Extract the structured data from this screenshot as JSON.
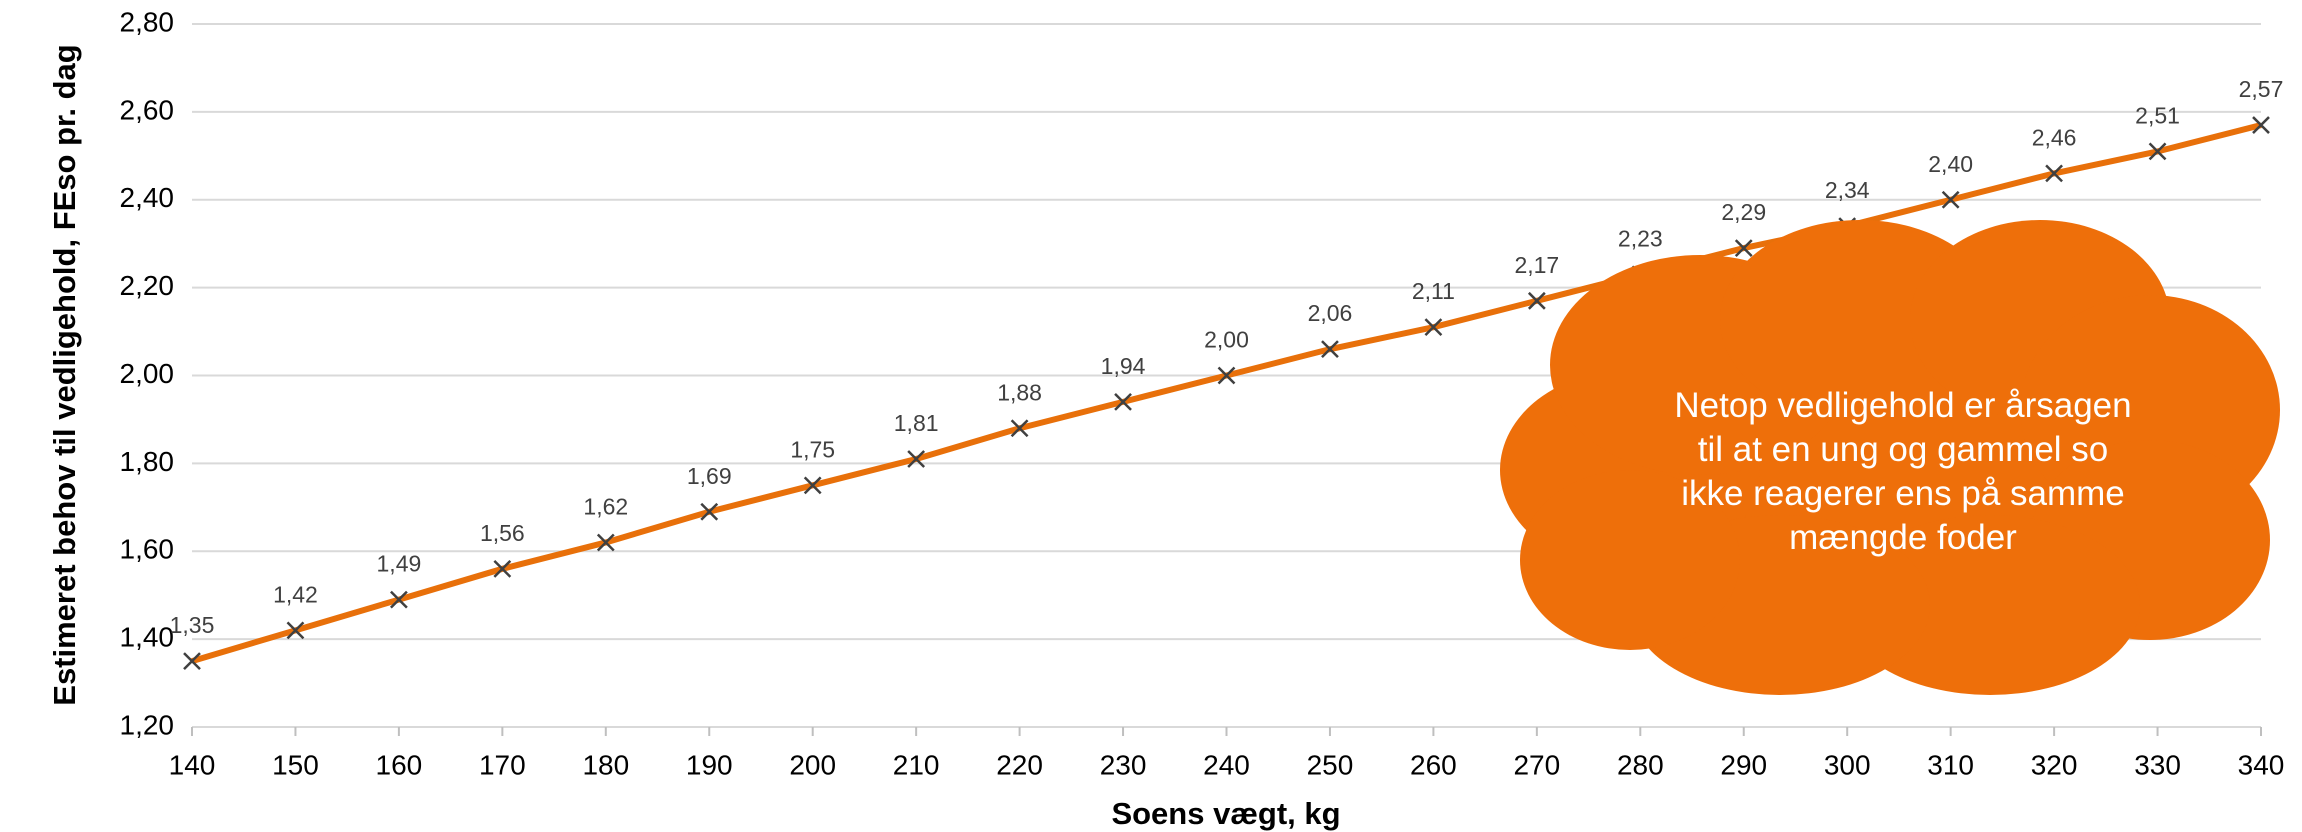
{
  "chart_data": {
    "type": "line",
    "x_label": "Soens vægt, kg",
    "y_label": "Estimeret behov til vedligehold, FEso pr. dag",
    "annotation": "Netop vedligehold er årsagen til at en ung og gammel so ikke reagerer ens på samme mængde foder",
    "x": [
      140,
      150,
      160,
      170,
      180,
      190,
      200,
      210,
      220,
      230,
      240,
      250,
      260,
      270,
      280,
      290,
      300,
      310,
      320,
      330,
      340
    ],
    "series": [
      {
        "name": "Estimeret behov",
        "color": "#E8700A",
        "values": [
          1.35,
          1.42,
          1.49,
          1.56,
          1.62,
          1.69,
          1.75,
          1.81,
          1.88,
          1.94,
          2.0,
          2.06,
          2.11,
          2.17,
          2.23,
          2.29,
          2.34,
          2.4,
          2.46,
          2.51,
          2.57
        ],
        "value_labels": [
          "1,35",
          "1,42",
          "1,49",
          "1,56",
          "1,62",
          "1,69",
          "1,75",
          "1,81",
          "1,88",
          "1,94",
          "2,00",
          "2,06",
          "2,11",
          "2,17",
          "2,23",
          "2,29",
          "2,34",
          "2,40",
          "2,46",
          "2,51",
          "2,57"
        ]
      }
    ],
    "xlim": [
      140,
      340
    ],
    "xticks": [
      140,
      150,
      160,
      170,
      180,
      190,
      200,
      210,
      220,
      230,
      240,
      250,
      260,
      270,
      280,
      290,
      300,
      310,
      320,
      330,
      340
    ],
    "ylim": [
      1.2,
      2.8
    ],
    "yticks": [
      {
        "value": 1.2,
        "label": "1,20"
      },
      {
        "value": 1.4,
        "label": "1,40"
      },
      {
        "value": 1.6,
        "label": "1,60"
      },
      {
        "value": 1.8,
        "label": "1,80"
      },
      {
        "value": 2.0,
        "label": "2,00"
      },
      {
        "value": 2.2,
        "label": "2,20"
      },
      {
        "value": 2.4,
        "label": "2,40"
      },
      {
        "value": 2.6,
        "label": "2,60"
      },
      {
        "value": 2.8,
        "label": "2,80"
      }
    ],
    "grid": true
  }
}
